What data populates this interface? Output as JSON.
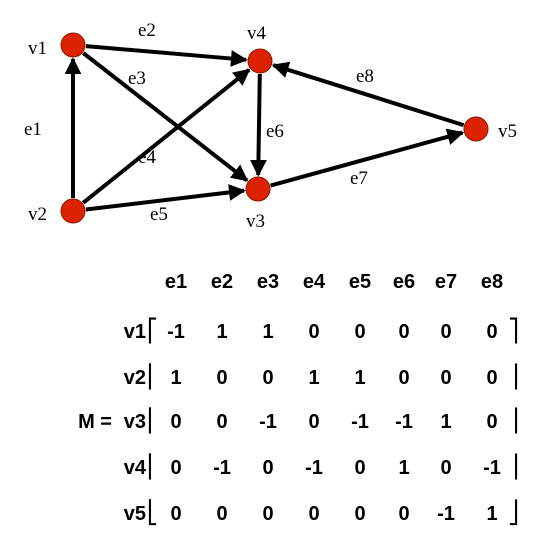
{
  "graph": {
    "nodes": [
      {
        "id": "v1",
        "label": "v1"
      },
      {
        "id": "v2",
        "label": "v2"
      },
      {
        "id": "v3",
        "label": "v3"
      },
      {
        "id": "v4",
        "label": "v4"
      },
      {
        "id": "v5",
        "label": "v5"
      }
    ],
    "edges": [
      {
        "id": "e1",
        "label": "e1",
        "from": "v2",
        "to": "v1"
      },
      {
        "id": "e2",
        "label": "e2",
        "from": "v1",
        "to": "v4"
      },
      {
        "id": "e3",
        "label": "e3",
        "from": "v1",
        "to": "v3"
      },
      {
        "id": "e4",
        "label": "e4",
        "from": "v2",
        "to": "v4"
      },
      {
        "id": "e5",
        "label": "e5",
        "from": "v2",
        "to": "v3"
      },
      {
        "id": "e6",
        "label": "e6",
        "from": "v4",
        "to": "v3"
      },
      {
        "id": "e7",
        "label": "e7",
        "from": "v3",
        "to": "v5"
      },
      {
        "id": "e8",
        "label": "e8",
        "from": "v5",
        "to": "v4"
      }
    ],
    "node_color": "#dd2200"
  },
  "matrix": {
    "name": "M =",
    "columns": [
      "e1",
      "e2",
      "e3",
      "e4",
      "e5",
      "e6",
      "e7",
      "e8"
    ],
    "rows": [
      {
        "label": "v1",
        "values": [
          "-1",
          "1",
          "1",
          "0",
          "0",
          "0",
          "0",
          "0"
        ]
      },
      {
        "label": "v2",
        "values": [
          "1",
          "0",
          "0",
          "1",
          "1",
          "0",
          "0",
          "0"
        ]
      },
      {
        "label": "v3",
        "values": [
          "0",
          "0",
          "-1",
          "0",
          "-1",
          "-1",
          "1",
          "0"
        ]
      },
      {
        "label": "v4",
        "values": [
          "0",
          "-1",
          "0",
          "-1",
          "0",
          "1",
          "0",
          "-1"
        ]
      },
      {
        "label": "v5",
        "values": [
          "0",
          "0",
          "0",
          "0",
          "0",
          "0",
          "-1",
          "1"
        ]
      }
    ]
  }
}
